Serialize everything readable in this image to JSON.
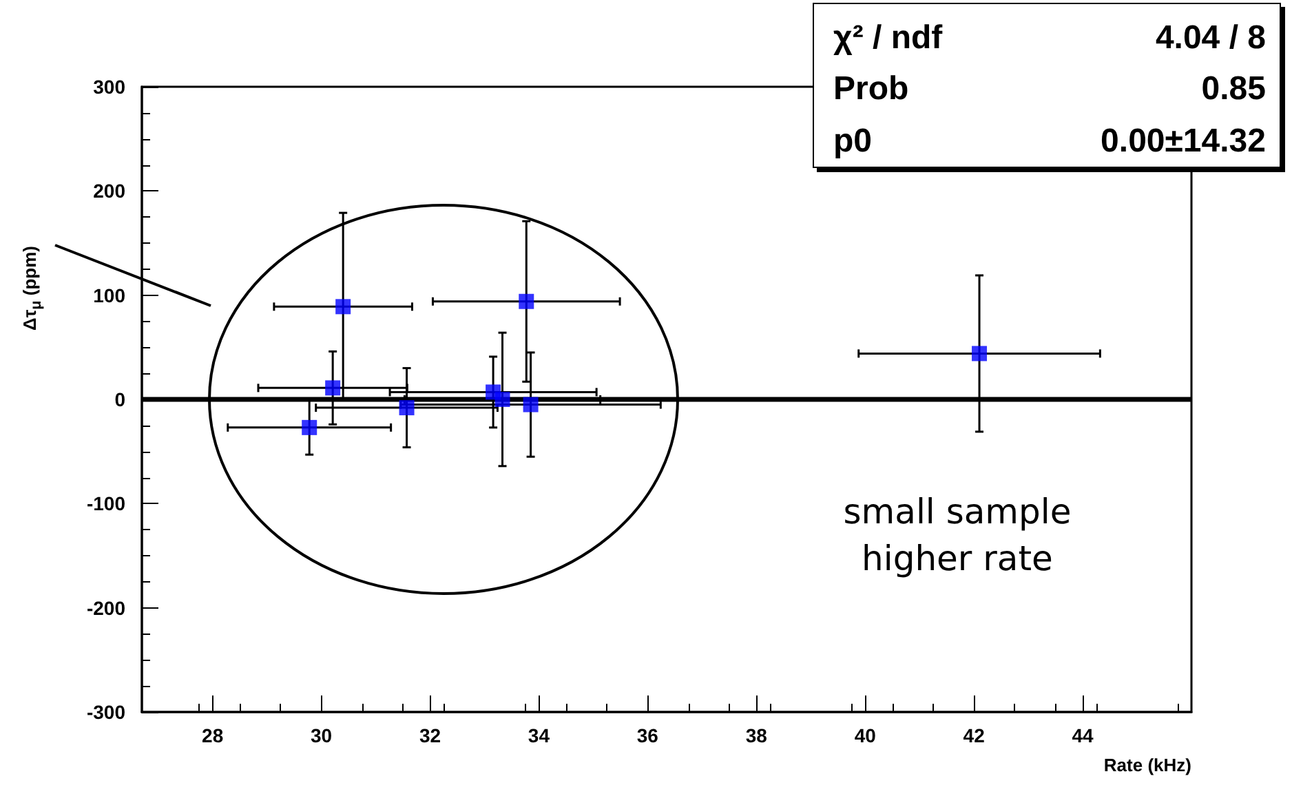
{
  "chart_data": {
    "type": "scatter",
    "xlabel": "Rate (kHz)",
    "ylabel": "Δτ$_{μ}$ (ppm)",
    "xlim": [
      26.7,
      46.0
    ],
    "xticks": [
      28,
      30,
      32,
      34,
      36,
      38,
      40,
      42,
      44
    ],
    "ylim": [
      -300,
      300
    ],
    "yticks": [
      -300,
      -200,
      -100,
      0,
      100,
      200,
      300
    ],
    "grid": false,
    "marker": "square",
    "series": [
      {
        "color": "#0000ff",
        "x": [
          30.4,
          33.77,
          30.21,
          29.78,
          31.57,
          33.16,
          33.33,
          33.85,
          42.1
        ],
        "values": [
          89,
          94,
          11,
          -27,
          -8,
          7,
          0,
          -5,
          44
        ],
        "errors": [
          90,
          77,
          35,
          26,
          38,
          34,
          64,
          50,
          75
        ],
        "xerrors": [
          1.27,
          1.72,
          1.37,
          1.5,
          1.67,
          1.9,
          1.8,
          2.39,
          2.22
        ]
      },
      {
        "type": "line",
        "color": "#000000",
        "x": [
          26.7,
          46.0
        ],
        "values": [
          0,
          0
        ],
        "marker": "none",
        "line_style": "solid"
      }
    ],
    "annotations": [
      "χ² / ndf",
      "4.04 / 8",
      "Prob",
      "0.85",
      "p0",
      "0.00±14.32",
      "small sample higher rate"
    ]
  }
}
